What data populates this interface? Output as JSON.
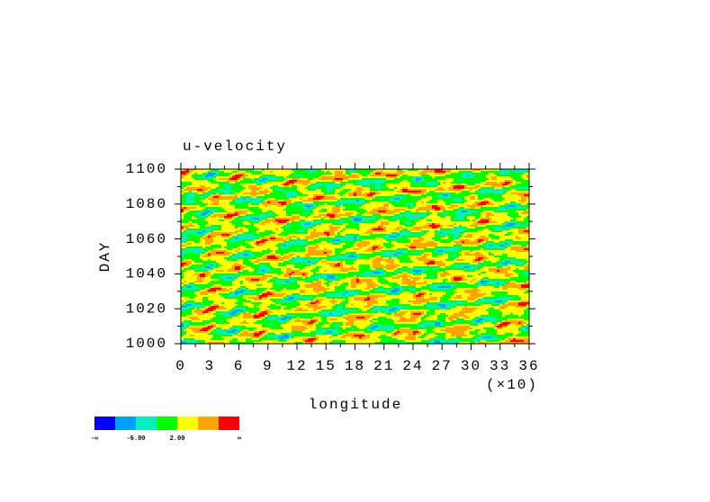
{
  "chart_data": {
    "type": "contour",
    "title": "u-velocity",
    "x_label": "longitude",
    "x_scale_label": "(×10)",
    "y_label": "DAY",
    "xlim": [
      0,
      36
    ],
    "xticks": [
      0,
      3,
      6,
      9,
      12,
      15,
      18,
      21,
      24,
      27,
      30,
      33,
      36
    ],
    "ylim": [
      1000,
      1100
    ],
    "yticks": [
      1000,
      1020,
      1040,
      1060,
      1080,
      1100
    ],
    "colorbar": {
      "colors": [
        "#0000ff",
        "#00a0ff",
        "#00f0c0",
        "#00ff00",
        "#ffff00",
        "#ffa500",
        "#ff0000"
      ],
      "labels": [
        "-∞",
        null,
        "-6.00",
        null,
        "2.00",
        null,
        null,
        "∞"
      ]
    }
  }
}
